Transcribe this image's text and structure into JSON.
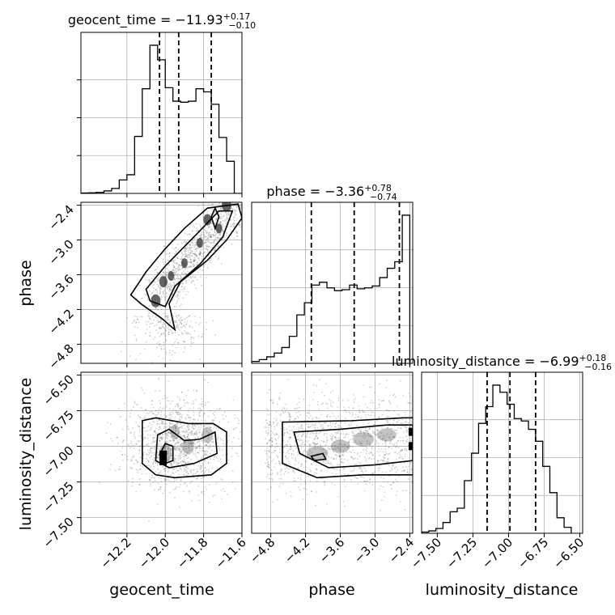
{
  "chart_data": {
    "type": "corner",
    "parameters": [
      "geocent_time",
      "phase",
      "luminosity_distance"
    ],
    "titles": [
      {
        "param": "geocent_time",
        "name": "geocent_time",
        "median": "−11.93",
        "plus": "+0.17",
        "minus": "−0.10"
      },
      {
        "param": "phase",
        "name": "phase",
        "median": "−3.36",
        "plus": "+0.78",
        "minus": "−0.74"
      },
      {
        "param": "luminosity_distance",
        "name": "luminosity_distance",
        "median": "−6.99",
        "plus": "+0.18",
        "minus": "−0.16"
      }
    ],
    "axis_labels": {
      "x": [
        "geocent_time",
        "phase",
        "luminosity_distance"
      ],
      "y": [
        "phase",
        "luminosity_distance"
      ]
    },
    "ranges": {
      "geocent_time": [
        -12.44,
        -11.6
      ],
      "phase": [
        -5.13,
        -2.35
      ],
      "luminosity_distance": [
        -7.61,
        -6.48
      ]
    },
    "ticks": {
      "geocent_time": [
        -12.2,
        -12.0,
        -11.8,
        -11.6
      ],
      "phase": [
        -4.8,
        -4.2,
        -3.6,
        -3.0,
        -2.4
      ],
      "luminosity_distance": [
        -7.5,
        -7.25,
        -7.0,
        -6.75,
        -6.5
      ]
    },
    "tick_labels": {
      "geocent_time": [
        "−12.2",
        "−12.0",
        "−11.8",
        "−11.6"
      ],
      "phase": [
        "−4.8",
        "−4.2",
        "−3.6",
        "−3.0",
        "−2.4"
      ],
      "luminosity_distance_x": [
        "−7.50",
        "−7.25",
        "−7.00",
        "−6.75",
        "−6.50"
      ],
      "luminosity_distance_y": [
        "−7.50",
        "−7.25",
        "−7.00",
        "−6.75",
        "−6.50"
      ],
      "phase_y": [
        "−4.8",
        "−4.2",
        "−3.6",
        "−3.0",
        "−2.4"
      ]
    },
    "quantiles": {
      "geocent_time": [
        -12.03,
        -11.93,
        -11.76
      ],
      "phase": [
        -4.1,
        -3.36,
        -2.58
      ],
      "luminosity_distance": [
        -7.15,
        -6.99,
        -6.81
      ]
    },
    "histograms": {
      "geocent_time": {
        "bins": [
          -12.44,
          -12.4,
          -12.36,
          -12.32,
          -12.28,
          -12.24,
          -12.2,
          -12.16,
          -12.12,
          -12.08,
          -12.04,
          -12.0,
          -11.96,
          -11.92,
          -11.88,
          -11.84,
          -11.8,
          -11.76,
          -11.72,
          -11.68,
          -11.64,
          -11.6
        ],
        "counts": [
          0.2,
          0.3,
          0.5,
          1.2,
          2.4,
          6.5,
          9.0,
          27.5,
          50.5,
          71.5,
          64.5,
          51.0,
          44.5,
          44.0,
          44.5,
          50.5,
          49.0,
          43.0,
          27.0,
          15.5,
          0.0
        ]
      },
      "phase": {
        "bins": [
          -5.13,
          -5.0,
          -4.87,
          -4.74,
          -4.61,
          -4.48,
          -4.35,
          -4.22,
          -4.09,
          -3.96,
          -3.83,
          -3.7,
          -3.57,
          -3.44,
          -3.31,
          -3.18,
          -3.05,
          -2.92,
          -2.79,
          -2.66,
          -2.53,
          -2.4
        ],
        "counts": [
          1.0,
          2.0,
          3.5,
          5.5,
          8.5,
          14.5,
          26.0,
          32.5,
          42.0,
          43.5,
          40.5,
          39.0,
          39.5,
          42.0,
          40.0,
          40.5,
          41.5,
          46.0,
          51.0,
          54.5,
          79.5
        ]
      },
      "luminosity_distance": {
        "bins": [
          -7.61,
          -7.56,
          -7.51,
          -7.46,
          -7.41,
          -7.36,
          -7.31,
          -7.26,
          -7.21,
          -7.16,
          -7.11,
          -7.06,
          -7.01,
          -6.96,
          -6.91,
          -6.86,
          -6.81,
          -6.76,
          -6.71,
          -6.66,
          -6.61,
          -6.56
        ],
        "counts": [
          0.5,
          1.0,
          2.0,
          4.5,
          9.0,
          10.5,
          22.0,
          33.5,
          46.0,
          53.0,
          62.0,
          59.0,
          54.0,
          48.0,
          47.0,
          43.5,
          38.5,
          28.0,
          17.0,
          6.5,
          2.5
        ]
      }
    },
    "line_color": "#000000",
    "grid": true,
    "scatter_color": "#000000"
  }
}
